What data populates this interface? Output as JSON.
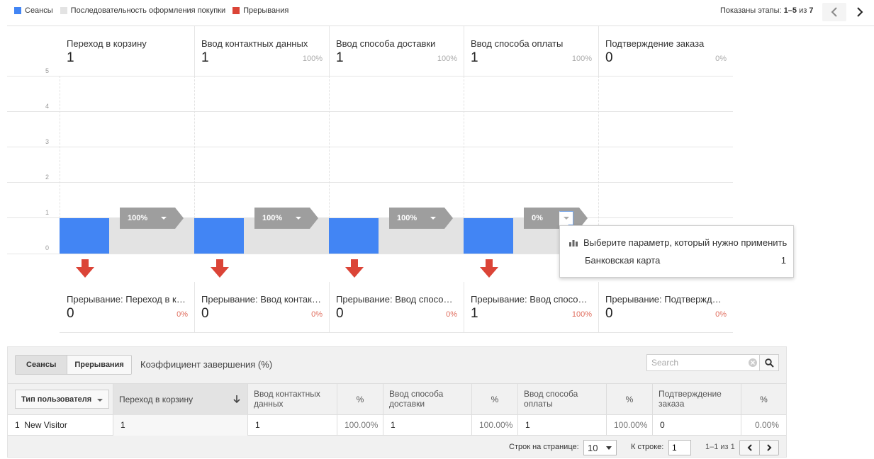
{
  "legend": [
    {
      "label": "Сеансы",
      "color": "#4285f4"
    },
    {
      "label": "Последовательность оформления покупки",
      "color": "#e3e3e3"
    },
    {
      "label": "Прерывания",
      "color": "#db4437"
    }
  ],
  "stages_info": {
    "prefix": "Показаны этапы: ",
    "range": "1–5",
    "of": " из ",
    "total": "7"
  },
  "y_axis": [
    "5",
    "4",
    "3",
    "2",
    "1",
    "0"
  ],
  "stages": [
    {
      "name": "Переход в корзину",
      "value": "1",
      "pct": "",
      "bar_value": 1,
      "flow_badge": "100%"
    },
    {
      "name": "Ввод контактных данных",
      "value": "1",
      "pct": "100%",
      "bar_value": 1,
      "flow_badge": "100%"
    },
    {
      "name": "Ввод способа доставки",
      "value": "1",
      "pct": "100%",
      "bar_value": 1,
      "flow_badge": "100%"
    },
    {
      "name": "Ввод способа оплаты",
      "value": "1",
      "pct": "100%",
      "bar_value": 1,
      "flow_badge": "0%"
    },
    {
      "name": "Подтверждение заказа",
      "value": "0",
      "pct": "0%",
      "bar_value": 0,
      "flow_badge": ""
    }
  ],
  "dropoffs": [
    {
      "name": "Прерывание: Переход в корзину",
      "value": "0",
      "pct": "0%"
    },
    {
      "name": "Прерывание: Ввод контактных данных",
      "value": "0",
      "pct": "0%"
    },
    {
      "name": "Прерывание: Ввод способа доставки",
      "value": "0",
      "pct": "0%"
    },
    {
      "name": "Прерывание: Ввод способа оплаты",
      "value": "1",
      "pct": "100%"
    },
    {
      "name": "Прерывание: Подтверждение заказа",
      "value": "0",
      "pct": "0%"
    }
  ],
  "popup": {
    "title": "Выберите параметр, который нужно применить",
    "option_label": "Банковская карта",
    "option_value": "1"
  },
  "toolbar": {
    "tab_sessions": "Сеансы",
    "tab_dropoffs": "Прерывания",
    "completion_rate": "Коэффициент завершения (%)",
    "search_placeholder": "Search"
  },
  "table": {
    "dimension": "Тип пользователя",
    "headers": [
      "Переход в корзину",
      "Ввод контактных данных",
      "%",
      "Ввод способа доставки",
      "%",
      "Ввод способа оплаты",
      "%",
      "Подтверждение заказа",
      "%"
    ],
    "rows": [
      {
        "index": "1",
        "user_type": "New Visitor",
        "cells": [
          "1",
          "1",
          "100.00%",
          "1",
          "100.00%",
          "1",
          "100.00%",
          "0",
          "0.00%"
        ]
      }
    ]
  },
  "pagination": {
    "rows_label": "Строк на странице:",
    "rows_value": "10",
    "goto_label": "К строке:",
    "goto_value": "1",
    "range": "1–1 из 1"
  }
}
